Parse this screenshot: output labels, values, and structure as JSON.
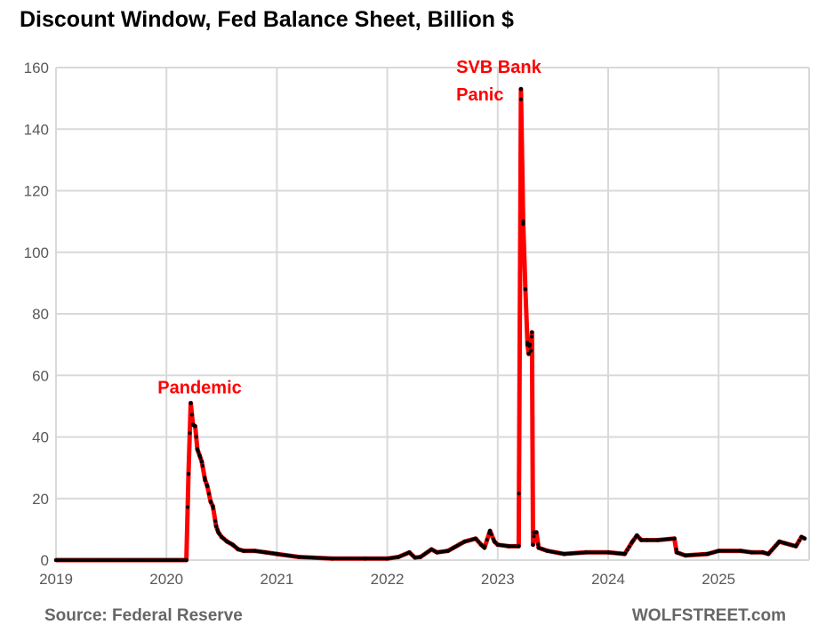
{
  "chart_data": {
    "type": "line",
    "title": "Discount Window, Fed Balance Sheet, Billion $",
    "xlabel": "",
    "ylabel": "",
    "xlim": [
      2019,
      2025.83
    ],
    "ylim": [
      0,
      160
    ],
    "grid": true,
    "yticks": [
      0,
      20,
      40,
      60,
      80,
      100,
      120,
      140,
      160
    ],
    "xticks": [
      "2019",
      "2020",
      "2021",
      "2022",
      "2023",
      "2024",
      "2025"
    ],
    "annotations": [
      {
        "text": "Pandemic",
        "x": 2020.22,
        "y": 51
      },
      {
        "text": "SVB Bank",
        "x": 2023.22,
        "y": 160
      },
      {
        "text": "Panic",
        "x": 2023.22,
        "y": 153
      }
    ],
    "series": [
      {
        "name": "Discount Window",
        "color": "#ff0000",
        "marker_color": "#000000",
        "x": [
          2019.0,
          2020.18,
          2020.2,
          2020.22,
          2020.24,
          2020.26,
          2020.28,
          2020.3,
          2020.32,
          2020.35,
          2020.37,
          2020.4,
          2020.42,
          2020.45,
          2020.47,
          2020.5,
          2020.55,
          2020.6,
          2020.65,
          2020.7,
          2020.8,
          2020.9,
          2021.0,
          2021.2,
          2021.5,
          2021.8,
          2022.0,
          2022.1,
          2022.2,
          2022.25,
          2022.3,
          2022.4,
          2022.45,
          2022.55,
          2022.6,
          2022.7,
          2022.8,
          2022.85,
          2022.88,
          2022.93,
          2022.97,
          2023.0,
          2023.1,
          2023.19,
          2023.21,
          2023.23,
          2023.25,
          2023.27,
          2023.28,
          2023.29,
          2023.3,
          2023.31,
          2023.32,
          2023.33,
          2023.35,
          2023.37,
          2023.45,
          2023.6,
          2023.8,
          2024.0,
          2024.15,
          2024.22,
          2024.26,
          2024.3,
          2024.35,
          2024.45,
          2024.6,
          2024.62,
          2024.7,
          2024.9,
          2025.0,
          2025.2,
          2025.3,
          2025.4,
          2025.45,
          2025.55,
          2025.6,
          2025.7,
          2025.75,
          2025.78
        ],
        "y": [
          0,
          0,
          28,
          51,
          44,
          43.5,
          36,
          34,
          32,
          26,
          24,
          19,
          17.5,
          11,
          9,
          7.5,
          6,
          5,
          3.5,
          3,
          3,
          2.5,
          2,
          1,
          0.5,
          0.5,
          0.5,
          1,
          2.5,
          0.8,
          1,
          3.5,
          2.5,
          3,
          4,
          6,
          7,
          5,
          4,
          9.5,
          6,
          5,
          4.5,
          4.5,
          153,
          110,
          88,
          70,
          67,
          70,
          68,
          74,
          5,
          9,
          9,
          4,
          3,
          2,
          2.5,
          2.5,
          2,
          6,
          8,
          6.5,
          6.5,
          6.5,
          7,
          2.5,
          1.5,
          2,
          3,
          3,
          2.5,
          2.5,
          2,
          6,
          5.5,
          4.5,
          7.5,
          7
        ]
      }
    ]
  },
  "footer": {
    "source": "Source: Federal Reserve",
    "brand": "WOLFSTREET.com"
  }
}
